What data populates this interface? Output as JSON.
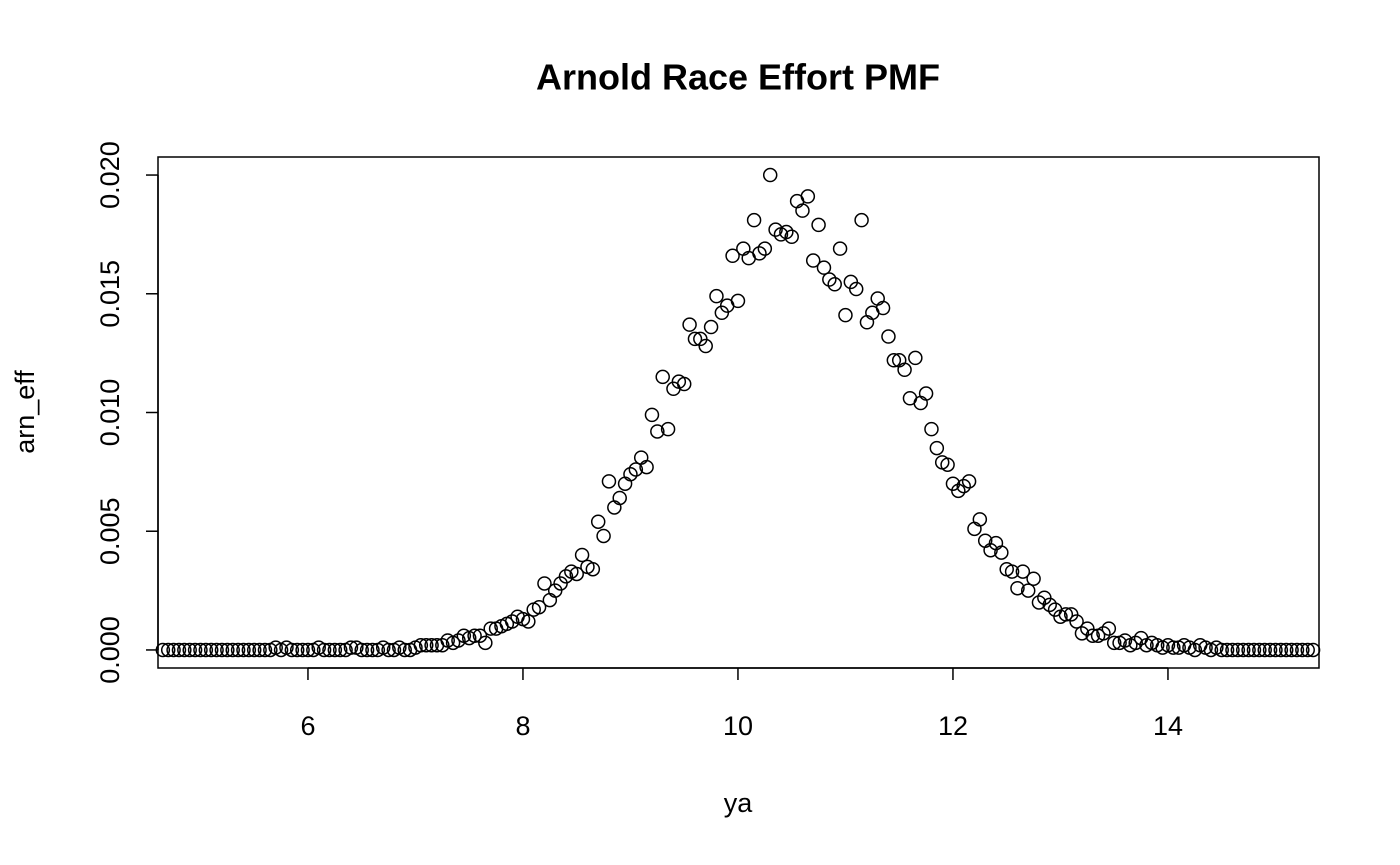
{
  "chart_data": {
    "type": "scatter",
    "title": "Arnold Race Effort PMF",
    "x_label": "ya",
    "y_label": "arn_eff",
    "x": [
      4.65,
      4.7,
      4.75,
      4.8,
      4.85,
      4.9,
      4.95,
      5.0,
      5.05,
      5.1,
      5.15,
      5.2,
      5.25,
      5.3,
      5.35,
      5.4,
      5.45,
      5.5,
      5.55,
      5.6,
      5.65,
      5.7,
      5.75,
      5.8,
      5.85,
      5.9,
      5.95,
      6.0,
      6.05,
      6.1,
      6.15,
      6.2,
      6.25,
      6.3,
      6.35,
      6.4,
      6.45,
      6.5,
      6.55,
      6.6,
      6.65,
      6.7,
      6.75,
      6.8,
      6.85,
      6.9,
      6.95,
      7.0,
      7.05,
      7.1,
      7.15,
      7.2,
      7.25,
      7.3,
      7.35,
      7.4,
      7.45,
      7.5,
      7.55,
      7.6,
      7.65,
      7.7,
      7.75,
      7.8,
      7.85,
      7.9,
      7.95,
      8.0,
      8.05,
      8.1,
      8.15,
      8.2,
      8.25,
      8.3,
      8.35,
      8.4,
      8.45,
      8.5,
      8.55,
      8.6,
      8.65,
      8.7,
      8.75,
      8.8,
      8.85,
      8.9,
      8.95,
      9.0,
      9.05,
      9.1,
      9.15,
      9.2,
      9.25,
      9.3,
      9.35,
      9.4,
      9.45,
      9.5,
      9.55,
      9.6,
      9.65,
      9.7,
      9.75,
      9.8,
      9.85,
      9.9,
      9.95,
      10.0,
      10.05,
      10.1,
      10.15,
      10.2,
      10.25,
      10.3,
      10.35,
      10.4,
      10.45,
      10.5,
      10.55,
      10.6,
      10.65,
      10.7,
      10.75,
      10.8,
      10.85,
      10.9,
      10.95,
      11.0,
      11.05,
      11.1,
      11.15,
      11.2,
      11.25,
      11.3,
      11.35,
      11.4,
      11.45,
      11.5,
      11.55,
      11.6,
      11.65,
      11.7,
      11.75,
      11.8,
      11.85,
      11.9,
      11.95,
      12.0,
      12.05,
      12.1,
      12.15,
      12.2,
      12.25,
      12.3,
      12.35,
      12.4,
      12.45,
      12.5,
      12.55,
      12.6,
      12.65,
      12.7,
      12.75,
      12.8,
      12.85,
      12.9,
      12.95,
      13.0,
      13.05,
      13.1,
      13.15,
      13.2,
      13.25,
      13.3,
      13.35,
      13.4,
      13.45,
      13.5,
      13.55,
      13.6,
      13.65,
      13.7,
      13.75,
      13.8,
      13.85,
      13.9,
      13.95,
      14.0,
      14.05,
      14.1,
      14.15,
      14.2,
      14.25,
      14.3,
      14.35,
      14.4,
      14.45,
      14.5,
      14.55,
      14.6,
      14.65,
      14.7,
      14.75,
      14.8,
      14.85,
      14.9,
      14.95,
      15.0,
      15.05,
      15.1,
      15.15,
      15.2,
      15.25,
      15.3,
      15.35
    ],
    "values": [
      0,
      0,
      0,
      0,
      0,
      0,
      0,
      0,
      0,
      0,
      0,
      0,
      0,
      0,
      0,
      0,
      0,
      0,
      0,
      0,
      0,
      0.0001,
      0,
      0.0001,
      0,
      0,
      0,
      0,
      0,
      0.0001,
      0,
      0,
      0,
      0,
      0,
      0.0001,
      0.0001,
      0,
      0,
      0,
      0,
      0.0001,
      0,
      0,
      0.0001,
      0,
      0,
      0.0001,
      0.0002,
      0.0002,
      0.0002,
      0.0002,
      0.0002,
      0.0004,
      0.0003,
      0.0004,
      0.0006,
      0.0005,
      0.0006,
      0.0006,
      0.0003,
      0.0009,
      0.0009,
      0.001,
      0.0011,
      0.0012,
      0.0014,
      0.0013,
      0.0012,
      0.0017,
      0.0018,
      0.0028,
      0.0021,
      0.0025,
      0.0028,
      0.0031,
      0.0033,
      0.0032,
      0.004,
      0.0035,
      0.0034,
      0.0054,
      0.0048,
      0.0071,
      0.006,
      0.0064,
      0.007,
      0.0074,
      0.0076,
      0.0081,
      0.0077,
      0.0099,
      0.0092,
      0.0115,
      0.0093,
      0.011,
      0.0113,
      0.0112,
      0.0137,
      0.0131,
      0.0131,
      0.0128,
      0.0136,
      0.0149,
      0.0142,
      0.0145,
      0.0166,
      0.0147,
      0.0169,
      0.0165,
      0.0181,
      0.0167,
      0.0169,
      0.02,
      0.0177,
      0.0175,
      0.0176,
      0.0174,
      0.0189,
      0.0185,
      0.0191,
      0.0164,
      0.0179,
      0.0161,
      0.0156,
      0.0154,
      0.0169,
      0.0141,
      0.0155,
      0.0152,
      0.0181,
      0.0138,
      0.0142,
      0.0148,
      0.0144,
      0.0132,
      0.0122,
      0.0122,
      0.0118,
      0.0106,
      0.0123,
      0.0104,
      0.0108,
      0.0093,
      0.0085,
      0.0079,
      0.0078,
      0.007,
      0.0067,
      0.0069,
      0.0071,
      0.0051,
      0.0055,
      0.0046,
      0.0042,
      0.0045,
      0.0041,
      0.0034,
      0.0033,
      0.0026,
      0.0033,
      0.0025,
      0.003,
      0.002,
      0.0022,
      0.0019,
      0.0017,
      0.0014,
      0.0015,
      0.0015,
      0.0012,
      0.0007,
      0.0009,
      0.0006,
      0.0006,
      0.0007,
      0.0009,
      0.0003,
      0.0003,
      0.0004,
      0.0002,
      0.0003,
      0.0005,
      0.0002,
      0.0003,
      0.0002,
      0.0001,
      0.0002,
      0.0001,
      0.0001,
      0.0002,
      0.0001,
      0,
      0.0002,
      0.0001,
      0,
      0.0001,
      0,
      0,
      0,
      0,
      0,
      0,
      0,
      0,
      0,
      0,
      0,
      0,
      0,
      0,
      0,
      0,
      0,
      0
    ],
    "color": "#000000",
    "xlim": [
      4.605,
      15.405
    ],
    "xticks": [
      6,
      8,
      10,
      12,
      14
    ],
    "ylim": [
      -0.00076,
      0.02076
    ],
    "yticks": [
      {
        "value": 0,
        "label": "0.000"
      },
      {
        "value": 0.005,
        "label": "0.005"
      },
      {
        "value": 0.01,
        "label": "0.010"
      },
      {
        "value": 0.015,
        "label": "0.015"
      },
      {
        "value": 0.02,
        "label": "0.020"
      }
    ],
    "grid": false
  }
}
